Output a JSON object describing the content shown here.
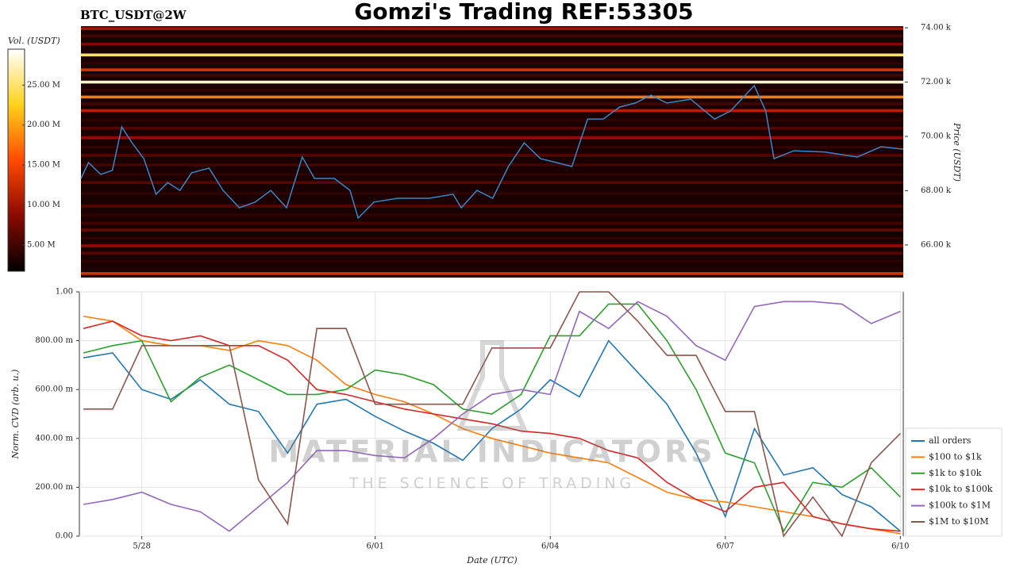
{
  "chart_data": [
    {
      "type": "heatmap",
      "title": "Gomzi's Trading REF:53305",
      "subtitle": "BTC_USDT@2W",
      "ylabel": "Price (USDT)",
      "colorbar_label": "Vol. (USDT)",
      "xlim": [
        -1.07,
        13.05
      ],
      "ylim": [
        64800,
        74060
      ],
      "yticks": [
        {
          "value": 66000,
          "label": "66.00 k"
        },
        {
          "value": 68000,
          "label": "68.00 k"
        },
        {
          "value": 70000,
          "label": "70.00 k"
        },
        {
          "value": 72000,
          "label": "72.00 k"
        },
        {
          "value": 74000,
          "label": "74.00 k"
        }
      ],
      "clim": [
        1700000,
        29500000
      ],
      "cticks": [
        {
          "value": 5000000,
          "label": "5.00 M"
        },
        {
          "value": 10000000,
          "label": "10.00 M"
        },
        {
          "value": 15000000,
          "label": "15.00 M"
        },
        {
          "value": 20000000,
          "label": "20.00 M"
        },
        {
          "value": 25000000,
          "label": "25.00 M"
        }
      ],
      "colormap": [
        "#000000",
        "#8b0a00",
        "#ff4a00",
        "#ffd21a",
        "#ffffff"
      ],
      "levels": [
        73970,
        73700,
        73400,
        73000,
        72700,
        72450,
        72250,
        72000,
        71700,
        71450,
        71200,
        70950,
        70600,
        70300,
        69950,
        69600,
        69300,
        68950,
        68600,
        68300,
        67900,
        67430,
        67100,
        66800,
        66550,
        66250,
        65970,
        65700,
        65400,
        64950
      ],
      "volumes": [
        10000000,
        5000000,
        8000000,
        25000000,
        4000000,
        13000000,
        5000000,
        28000000,
        4000000,
        18000000,
        5000000,
        11000000,
        4000000,
        6000000,
        9000000,
        4000000,
        6000000,
        5000000,
        4000000,
        6000000,
        4000000,
        6000000,
        4000000,
        5000000,
        7000000,
        4000000,
        9000000,
        6000000,
        4000000,
        13000000
      ],
      "color": "#3a87c8",
      "x": [
        -1.07,
        -0.94,
        -0.73,
        -0.53,
        -0.37,
        -0.19,
        0.01,
        0.22,
        0.42,
        0.63,
        0.83,
        1.13,
        1.37,
        1.65,
        1.92,
        2.19,
        2.46,
        2.73,
        2.94,
        3.28,
        3.55,
        3.69,
        3.96,
        4.37,
        4.91,
        5.32,
        5.46,
        5.73,
        6.0,
        6.27,
        6.54,
        6.82,
        7.09,
        7.36,
        7.63,
        7.9,
        8.18,
        8.45,
        8.72,
        8.99,
        9.4,
        9.81,
        10.08,
        10.49,
        10.69,
        10.83,
        11.17,
        11.71,
        12.26,
        12.67,
        13.05
      ],
      "values": [
        68450,
        69040,
        68600,
        68750,
        70350,
        69750,
        69180,
        67870,
        68300,
        68010,
        68660,
        68830,
        68010,
        67370,
        67580,
        68010,
        67370,
        69240,
        68450,
        68450,
        68010,
        66990,
        67580,
        67720,
        67720,
        67870,
        67370,
        68010,
        67720,
        68890,
        69760,
        69180,
        69040,
        68890,
        70640,
        70640,
        71080,
        71230,
        71520,
        71230,
        71370,
        70640,
        70930,
        71870,
        70930,
        69180,
        69470,
        69420,
        69240,
        69620,
        69530
      ]
    },
    {
      "type": "line",
      "xlabel": "Date (UTC)",
      "ylabel": "Norm. CVD (arb. u.)",
      "xlim": [
        -1.07,
        13.05
      ],
      "ylim": [
        0,
        1
      ],
      "xticks": [
        {
          "value": 0,
          "label": "5/28"
        },
        {
          "value": 4,
          "label": "6/01"
        },
        {
          "value": 7,
          "label": "6/04"
        },
        {
          "value": 10,
          "label": "6/07"
        },
        {
          "value": 13,
          "label": "6/10"
        }
      ],
      "yticks": [
        {
          "value": 0,
          "label": "0.00"
        },
        {
          "value": 0.2,
          "label": "200.00 m"
        },
        {
          "value": 0.4,
          "label": "400.00 m"
        },
        {
          "value": 0.6,
          "label": "600.00 m"
        },
        {
          "value": 0.8,
          "label": "800.00 m"
        },
        {
          "value": 1,
          "label": "1.00"
        }
      ],
      "grid": true,
      "legend": "lower right",
      "watermark": [
        "MATERIAL INDICATORS",
        "THE SCIENCE OF TRADING"
      ],
      "x": [
        -1,
        -0.5,
        0,
        0.5,
        1,
        1.5,
        2,
        2.5,
        3,
        3.5,
        4,
        4.5,
        5,
        5.5,
        6,
        6.5,
        7,
        7.5,
        8,
        8.5,
        9,
        9.5,
        10,
        10.5,
        11,
        11.5,
        12,
        12.5,
        13
      ],
      "series": [
        {
          "name": "all orders",
          "color": "#1f77b4",
          "values": [
            0.73,
            0.75,
            0.6,
            0.56,
            0.64,
            0.54,
            0.51,
            0.34,
            0.54,
            0.56,
            0.49,
            0.43,
            0.38,
            0.31,
            0.44,
            0.52,
            0.64,
            0.57,
            0.8,
            0.67,
            0.54,
            0.34,
            0.08,
            0.44,
            0.25,
            0.28,
            0.17,
            0.12,
            0.02
          ]
        },
        {
          "name": "$100 to $1k",
          "color": "#ff7f0e",
          "values": [
            0.9,
            0.88,
            0.8,
            0.78,
            0.78,
            0.76,
            0.8,
            0.78,
            0.72,
            0.62,
            0.58,
            0.55,
            0.5,
            0.44,
            0.4,
            0.37,
            0.34,
            0.32,
            0.3,
            0.24,
            0.18,
            0.15,
            0.14,
            0.12,
            0.1,
            0.08,
            0.05,
            0.03,
            0.01
          ]
        },
        {
          "name": "$1k to $10k",
          "color": "#2ca02c",
          "values": [
            0.75,
            0.78,
            0.8,
            0.55,
            0.65,
            0.7,
            0.64,
            0.58,
            0.58,
            0.6,
            0.68,
            0.66,
            0.62,
            0.52,
            0.5,
            0.58,
            0.82,
            0.82,
            0.95,
            0.95,
            0.8,
            0.6,
            0.34,
            0.3,
            0.02,
            0.22,
            0.2,
            0.28,
            0.16
          ]
        },
        {
          "name": "$10k to $100k",
          "color": "#d62728",
          "values": [
            0.85,
            0.88,
            0.82,
            0.8,
            0.82,
            0.78,
            0.78,
            0.72,
            0.6,
            0.58,
            0.55,
            0.52,
            0.5,
            0.48,
            0.46,
            0.43,
            0.42,
            0.4,
            0.35,
            0.32,
            0.22,
            0.15,
            0.1,
            0.2,
            0.22,
            0.08,
            0.05,
            0.03,
            0.02
          ]
        },
        {
          "name": "$100k to $1M",
          "color": "#9467bd",
          "values": [
            0.13,
            0.15,
            0.18,
            0.13,
            0.1,
            0.02,
            0.12,
            0.22,
            0.35,
            0.35,
            0.33,
            0.32,
            0.4,
            0.5,
            0.58,
            0.6,
            0.58,
            0.92,
            0.85,
            0.96,
            0.9,
            0.78,
            0.72,
            0.94,
            0.96,
            0.96,
            0.95,
            0.87,
            0.92
          ]
        },
        {
          "name": "$1M to $10M",
          "color": "#8c564b",
          "values": [
            0.52,
            0.52,
            0.78,
            0.78,
            0.78,
            0.78,
            0.23,
            0.05,
            0.85,
            0.85,
            0.54,
            0.54,
            0.54,
            0.54,
            0.77,
            0.77,
            0.77,
            1.0,
            1.0,
            0.88,
            0.74,
            0.74,
            0.51,
            0.51,
            0.0,
            0.16,
            0.0,
            0.3,
            0.42
          ]
        }
      ]
    }
  ]
}
